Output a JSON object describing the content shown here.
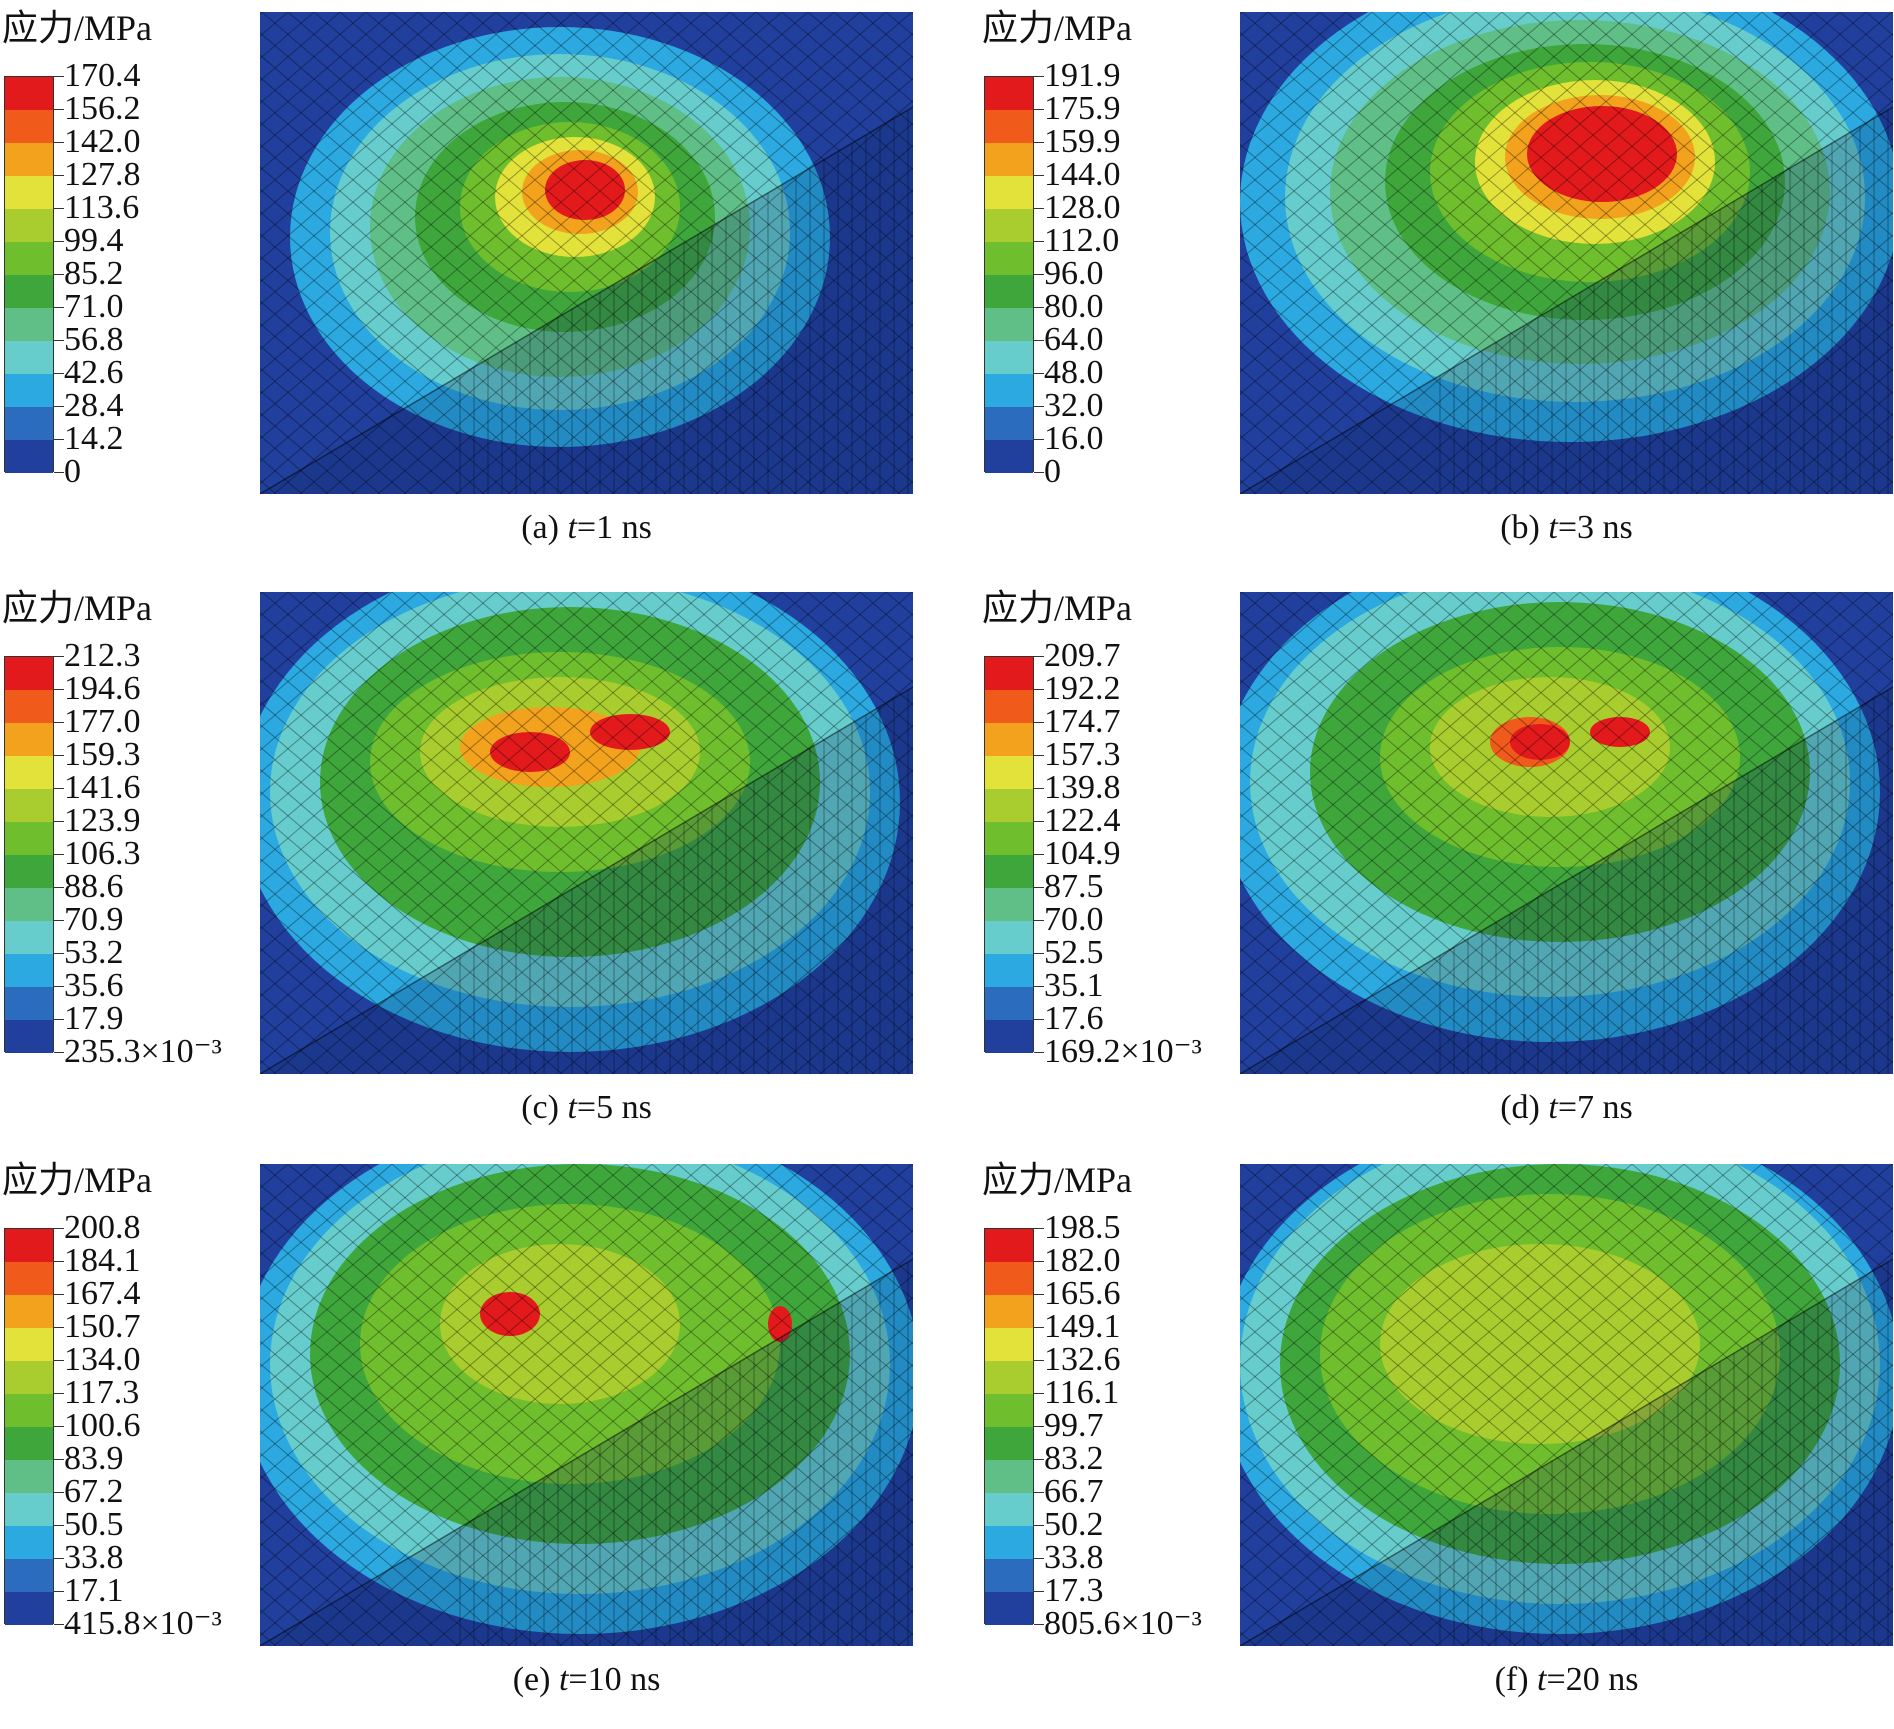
{
  "panels": [
    {
      "label": "(a)",
      "time_value": "1",
      "unit": "ns",
      "legend_title": "应力/MPa",
      "ticks": [
        "170.4",
        "156.2",
        "142.0",
        "127.8",
        "113.6",
        "99.4",
        "85.2",
        "71.0",
        "56.8",
        "42.6",
        "28.4",
        "14.2",
        "0"
      ]
    },
    {
      "label": "(b)",
      "time_value": "3",
      "unit": "ns",
      "legend_title": "应力/MPa",
      "ticks": [
        "191.9",
        "175.9",
        "159.9",
        "144.0",
        "128.0",
        "112.0",
        "96.0",
        "80.0",
        "64.0",
        "48.0",
        "32.0",
        "16.0",
        "0"
      ]
    },
    {
      "label": "(c)",
      "time_value": "5",
      "unit": "ns",
      "legend_title": "应力/MPa",
      "ticks": [
        "212.3",
        "194.6",
        "177.0",
        "159.3",
        "141.6",
        "123.9",
        "106.3",
        "88.6",
        "70.9",
        "53.2",
        "35.6",
        "17.9",
        "235.3×10⁻³"
      ]
    },
    {
      "label": "(d)",
      "time_value": "7",
      "unit": "ns",
      "legend_title": "应力/MPa",
      "ticks": [
        "209.7",
        "192.2",
        "174.7",
        "157.3",
        "139.8",
        "122.4",
        "104.9",
        "87.5",
        "70.0",
        "52.5",
        "35.1",
        "17.6",
        "169.2×10⁻³"
      ]
    },
    {
      "label": "(e)",
      "time_value": "10",
      "unit": "ns",
      "legend_title": "应力/MPa",
      "ticks": [
        "200.8",
        "184.1",
        "167.4",
        "150.7",
        "134.0",
        "117.3",
        "100.6",
        "83.9",
        "67.2",
        "50.5",
        "33.8",
        "17.1",
        "415.8×10⁻³"
      ]
    },
    {
      "label": "(f)",
      "time_value": "20",
      "unit": "ns",
      "legend_title": "应力/MPa",
      "ticks": [
        "198.5",
        "182.0",
        "165.6",
        "149.1",
        "132.6",
        "116.1",
        "99.7",
        "83.2",
        "66.7",
        "50.2",
        "33.8",
        "17.3",
        "805.6×10⁻³"
      ]
    }
  ],
  "caption_time_symbol": "t",
  "colormap": [
    "#e31a1c",
    "#f05a1a",
    "#f2a21c",
    "#e2e23a",
    "#a9cd2e",
    "#6fbe2e",
    "#3fa63c",
    "#5fbf86",
    "#66cccc",
    "#2ba9e0",
    "#2b6cbf",
    "#213f9c"
  ]
}
